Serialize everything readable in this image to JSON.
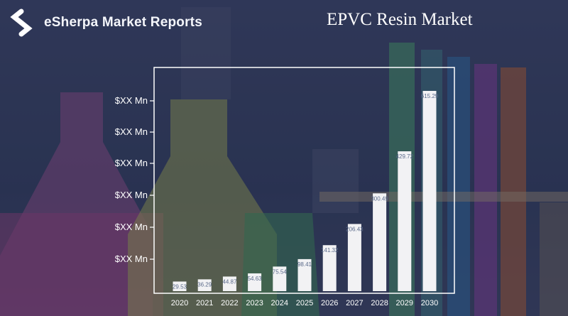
{
  "brand": {
    "name": "eSherpa Market Reports",
    "logo_icon": "esherpa-logo-icon"
  },
  "colors": {
    "bar": "#f2f2f4",
    "frame": "#ffffff",
    "title": "#ffffff"
  },
  "chart_data": {
    "type": "bar",
    "title": "EPVC Resin Market",
    "categories": [
      "2020",
      "2021",
      "2022",
      "2023",
      "2024",
      "2025",
      "2026",
      "2027",
      "2028",
      "2029",
      "2030"
    ],
    "values": [
      29.53,
      36.29,
      44.87,
      54.63,
      75.54,
      98.41,
      141.32,
      206.43,
      300.49,
      429.72,
      615.29
    ],
    "data_labels": [
      "29.53",
      "36.29",
      "44.87",
      "54.63",
      "75.54",
      "98.41",
      "141.32",
      "206.43",
      "300.49",
      "429.72",
      "615.29"
    ],
    "y_tick_labels": [
      "$XX Mn",
      "$XX Mn",
      "$XX Mn",
      "$XX Mn",
      "$XX Mn",
      "$XX Mn"
    ],
    "xlabel": "",
    "ylabel": "",
    "grid": false
  }
}
